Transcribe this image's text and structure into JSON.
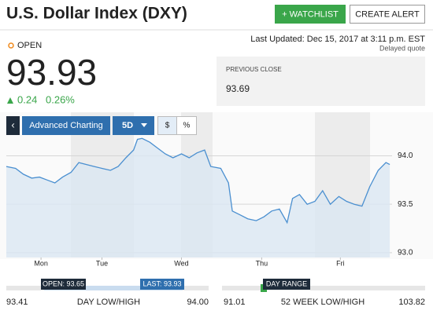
{
  "header": {
    "title": "U.S. Dollar Index (DXY)",
    "watchlist": "+ WATCHLIST",
    "alert": "CREATE ALERT"
  },
  "quote": {
    "status": "OPEN",
    "last_updated": "Last Updated: Dec 15, 2017 at 3:11 p.m. EST",
    "delayed": "Delayed quote",
    "price": "93.93",
    "change": "0.24",
    "change_pct": "0.26%",
    "previous_close_label": "PREVIOUS CLOSE",
    "previous_close": "93.69"
  },
  "toolbar": {
    "back": "‹",
    "advanced": "Advanced Charting",
    "range": "5D",
    "dollar": "$",
    "percent": "%"
  },
  "chart_data": {
    "type": "line",
    "color": "#4a8fd0",
    "fill": "#dbe7f3",
    "x": [
      0,
      0.12,
      0.22,
      0.33,
      0.43,
      0.53,
      0.63,
      0.73,
      0.84,
      0.94,
      1.04,
      1.14,
      1.24,
      1.35,
      1.45,
      1.55,
      1.65,
      1.7,
      1.76,
      1.86,
      1.96,
      2.06,
      2.16,
      2.27,
      2.37,
      2.47,
      2.57,
      2.65,
      2.78,
      2.88,
      2.93,
      3.03,
      3.13,
      3.24,
      3.34,
      3.44,
      3.54,
      3.64,
      3.71,
      3.8,
      3.9,
      4.0,
      4.1,
      4.2,
      4.31,
      4.41,
      4.51,
      4.61,
      4.71,
      4.82,
      4.92,
      4.97
    ],
    "values": [
      93.89,
      93.87,
      93.81,
      93.77,
      93.78,
      93.75,
      93.72,
      93.78,
      93.83,
      93.93,
      93.91,
      93.89,
      93.87,
      93.85,
      93.89,
      93.98,
      94.06,
      94.17,
      94.18,
      94.14,
      94.08,
      94.02,
      93.98,
      94.02,
      93.98,
      94.03,
      94.06,
      93.89,
      93.87,
      93.72,
      93.43,
      93.39,
      93.35,
      93.33,
      93.37,
      93.43,
      93.45,
      93.31,
      93.56,
      93.6,
      93.5,
      93.53,
      93.64,
      93.5,
      93.58,
      93.53,
      93.5,
      93.48,
      93.68,
      93.85,
      93.93,
      93.91
    ],
    "xlim": [
      0,
      5
    ],
    "xticks": [
      {
        "value": 0.45,
        "label": "Mon"
      },
      {
        "value": 1.24,
        "label": "Tue"
      },
      {
        "value": 2.27,
        "label": "Wed"
      },
      {
        "value": 3.31,
        "label": "Thu"
      },
      {
        "value": 4.33,
        "label": "Fri"
      }
    ],
    "ylim": [
      92.95,
      94.45
    ],
    "yticks": [
      {
        "value": 94,
        "label": "94.0"
      },
      {
        "value": 93.5,
        "label": "93.5"
      },
      {
        "value": 93,
        "label": "93.0"
      }
    ],
    "grid": true
  },
  "ranges": {
    "day": {
      "open": "OPEN: 93.65",
      "last": "LAST: 93.93",
      "low": "93.41",
      "label": "DAY LOW/HIGH",
      "high": "94.00"
    },
    "week52": {
      "marker": "DAY RANGE",
      "low": "91.01",
      "label": "52 WEEK LOW/HIGH",
      "high": "103.82"
    }
  }
}
